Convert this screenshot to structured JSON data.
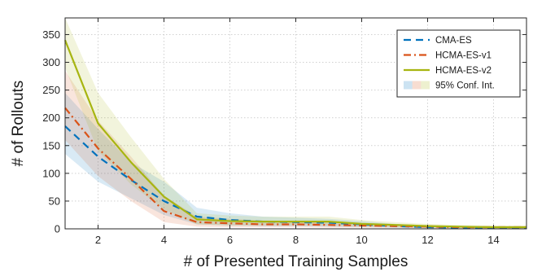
{
  "chart_data": {
    "type": "line",
    "title": "",
    "xlabel": "# of Presented Training Samples",
    "ylabel": "# of Rollouts",
    "xlim": [
      1,
      15
    ],
    "ylim": [
      0,
      380
    ],
    "xticks": [
      2,
      4,
      6,
      8,
      10,
      12,
      14
    ],
    "yticks": [
      0,
      50,
      100,
      150,
      200,
      250,
      300,
      350
    ],
    "grid": true,
    "legend_position": "top-right",
    "x": [
      1,
      2,
      3,
      4,
      5,
      6,
      7,
      8,
      9,
      10,
      11,
      12,
      13,
      14,
      15
    ],
    "series": [
      {
        "name": "CMA-ES",
        "color": "#0072BD",
        "style": "dashed",
        "values": [
          185,
          130,
          88,
          50,
          22,
          16,
          13,
          12,
          11,
          8,
          5,
          3,
          2,
          2,
          2
        ],
        "ci_lower": [
          135,
          85,
          55,
          25,
          8,
          6,
          5,
          5,
          4,
          3,
          2,
          1,
          1,
          1,
          1
        ],
        "ci_upper": [
          245,
          180,
          120,
          85,
          38,
          28,
          22,
          20,
          18,
          14,
          9,
          6,
          4,
          4,
          4
        ]
      },
      {
        "name": "HCMA-ES-v1",
        "color": "#D95319",
        "style": "dashdot",
        "values": [
          218,
          145,
          90,
          32,
          12,
          10,
          8,
          8,
          7,
          6,
          5,
          4,
          3,
          3,
          3
        ],
        "ci_lower": [
          160,
          95,
          50,
          12,
          4,
          3,
          3,
          3,
          2,
          2,
          2,
          1,
          1,
          1,
          1
        ],
        "ci_upper": [
          285,
          195,
          130,
          60,
          22,
          18,
          15,
          14,
          12,
          10,
          8,
          7,
          5,
          5,
          5
        ]
      },
      {
        "name": "HCMA-ES-v2",
        "color": "#A7B511",
        "style": "solid",
        "values": [
          340,
          190,
          120,
          58,
          17,
          14,
          13,
          13,
          13,
          9,
          7,
          5,
          4,
          3,
          3
        ],
        "ci_lower": [
          290,
          140,
          80,
          35,
          8,
          6,
          6,
          6,
          6,
          4,
          3,
          2,
          2,
          1,
          1
        ],
        "ci_upper": [
          380,
          245,
          165,
          90,
          28,
          24,
          22,
          22,
          22,
          16,
          12,
          9,
          7,
          6,
          6
        ]
      }
    ],
    "legend_extra": {
      "label": "95% Conf. Int."
    }
  }
}
